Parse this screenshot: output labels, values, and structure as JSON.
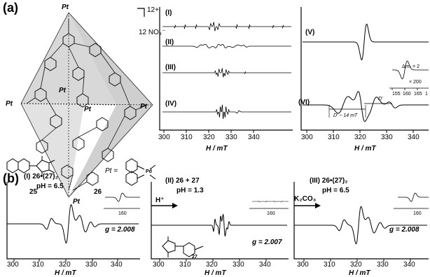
{
  "panel_a": {
    "label": "(a)",
    "charge": "12+",
    "counterion": "12 NO₃⁻",
    "pt_labels": [
      "Pt",
      "Pt",
      "Pt",
      "Pt",
      "Pt",
      "Pt"
    ],
    "compound_25": "25",
    "compound_26": "26",
    "pt_def": "Pt =",
    "pd_label": "Pd",
    "spectra_labels": [
      "(I)",
      "(II)",
      "(III)",
      "(IV)",
      "(V)",
      "(VI)"
    ],
    "x_ticks": [
      "300",
      "310",
      "320",
      "330",
      "340"
    ],
    "xlabel": "H / mT",
    "inset_dms": "Δmₛ = 2",
    "inset_scale": "× 200",
    "inset_ticks": [
      "155",
      "160",
      "165",
      "1"
    ],
    "d_prime": "D′",
    "d_prime_approx": "D′ ~ 14 mT"
  },
  "panel_b": {
    "label": "(b)",
    "sub": [
      {
        "title": "(I) 26•(27)₂",
        "ph": "pH = 6.5",
        "g": "g = 2.008",
        "inset_tick": "160"
      },
      {
        "title": "(II) 26 + 27",
        "ph": "pH = 1.3",
        "g": "g = 2.007",
        "inset_tick": "160"
      },
      {
        "title": "(III) 26•(27)₂",
        "ph": "pH = 6.5",
        "g": "g = 2.008",
        "inset_tick": "160"
      }
    ],
    "arrow1": "H⁺",
    "arrow2": "K₂CO₃",
    "compound_27": "27",
    "x_ticks": [
      "300",
      "310",
      "320",
      "330",
      "340"
    ],
    "xlabel": "H / mT"
  }
}
